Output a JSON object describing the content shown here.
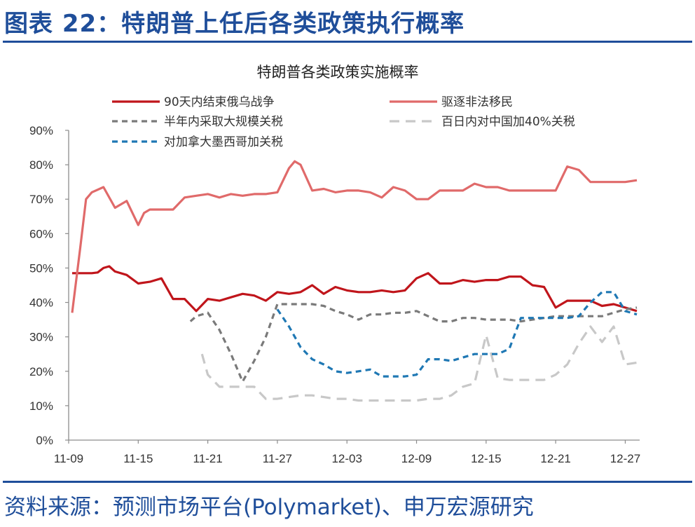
{
  "figure_title": "图表 22：特朗普上任后各类政策执行概率",
  "source": "资料来源：预测市场平台(Polymarket)、申万宏源研究",
  "chart_data": {
    "type": "line",
    "title": "特朗普各类政策实施概率",
    "xlabel": "",
    "ylabel": "",
    "ylim": [
      0,
      90
    ],
    "yticks": [
      "0%",
      "10%",
      "20%",
      "30%",
      "40%",
      "50%",
      "60%",
      "70%",
      "80%",
      "90%"
    ],
    "yticks_values": [
      0,
      10,
      20,
      30,
      40,
      50,
      60,
      70,
      80,
      90
    ],
    "xticks": [
      "11-09",
      "11-15",
      "11-21",
      "11-27",
      "12-03",
      "12-09",
      "12-15",
      "12-21",
      "12-27"
    ],
    "xticks_values": [
      0,
      6,
      12,
      18,
      24,
      30,
      36,
      42,
      48
    ],
    "xlim": [
      0,
      49
    ],
    "grid": false,
    "legend_position": "top",
    "series": [
      {
        "name": "90天内结束俄乌战争",
        "color": "#c0151b",
        "dash": "solid",
        "width": 3.2,
        "points": [
          [
            0.3,
            48.5
          ],
          [
            1,
            48.5
          ],
          [
            2,
            48.5
          ],
          [
            2.5,
            48.7
          ],
          [
            3,
            50
          ],
          [
            3.5,
            50.5
          ],
          [
            4,
            49
          ],
          [
            5,
            48
          ],
          [
            6,
            45.5
          ],
          [
            7,
            46
          ],
          [
            8,
            47
          ],
          [
            9,
            41
          ],
          [
            10,
            41
          ],
          [
            11,
            37.5
          ],
          [
            12,
            41
          ],
          [
            13,
            40.5
          ],
          [
            14,
            41.5
          ],
          [
            15,
            42.5
          ],
          [
            16,
            42
          ],
          [
            17,
            40.5
          ],
          [
            18,
            43
          ],
          [
            19,
            42.5
          ],
          [
            20,
            43
          ],
          [
            21,
            45
          ],
          [
            22,
            42.5
          ],
          [
            23,
            44.5
          ],
          [
            24,
            43.5
          ],
          [
            25,
            43
          ],
          [
            26,
            43
          ],
          [
            27,
            43.5
          ],
          [
            28,
            43
          ],
          [
            29,
            43.5
          ],
          [
            30,
            47
          ],
          [
            31,
            48.5
          ],
          [
            32,
            45.5
          ],
          [
            33,
            45.5
          ],
          [
            34,
            46.5
          ],
          [
            35,
            46
          ],
          [
            36,
            46.5
          ],
          [
            37,
            46.5
          ],
          [
            38,
            47.5
          ],
          [
            39,
            47.5
          ],
          [
            40,
            45
          ],
          [
            41,
            44.5
          ],
          [
            42,
            38.5
          ],
          [
            43,
            40.5
          ],
          [
            44,
            40.5
          ],
          [
            45,
            40.5
          ],
          [
            46,
            39
          ],
          [
            47,
            39.5
          ],
          [
            48,
            38.5
          ],
          [
            49,
            37.5
          ]
        ]
      },
      {
        "name": "驱逐非法移民",
        "color": "#e06a6a",
        "dash": "solid",
        "width": 3.2,
        "points": [
          [
            0.3,
            37
          ],
          [
            1,
            56
          ],
          [
            1.5,
            70
          ],
          [
            2,
            72
          ],
          [
            3,
            73.5
          ],
          [
            4,
            67.5
          ],
          [
            5,
            69.5
          ],
          [
            6,
            62.5
          ],
          [
            6.5,
            66
          ],
          [
            7,
            67
          ],
          [
            8,
            67
          ],
          [
            9,
            67
          ],
          [
            10,
            70.5
          ],
          [
            11,
            71
          ],
          [
            12,
            71.5
          ],
          [
            13,
            70.5
          ],
          [
            14,
            71.5
          ],
          [
            15,
            71
          ],
          [
            16,
            71.5
          ],
          [
            17,
            71.5
          ],
          [
            18,
            72
          ],
          [
            19,
            79
          ],
          [
            19.5,
            81
          ],
          [
            20,
            80
          ],
          [
            21,
            72.5
          ],
          [
            22,
            73
          ],
          [
            23,
            72
          ],
          [
            24,
            72.5
          ],
          [
            25,
            72.5
          ],
          [
            26,
            72
          ],
          [
            27,
            70.5
          ],
          [
            28,
            73.5
          ],
          [
            29,
            72.5
          ],
          [
            30,
            70
          ],
          [
            31,
            70
          ],
          [
            32,
            72.5
          ],
          [
            33,
            72.5
          ],
          [
            34,
            72.5
          ],
          [
            35,
            74.5
          ],
          [
            36,
            73.5
          ],
          [
            37,
            73.5
          ],
          [
            38,
            72.5
          ],
          [
            39,
            72.5
          ],
          [
            40,
            72.5
          ],
          [
            41,
            72.5
          ],
          [
            42,
            72.5
          ],
          [
            43,
            79.5
          ],
          [
            44,
            78.5
          ],
          [
            45,
            75
          ],
          [
            46,
            75
          ],
          [
            47,
            75
          ],
          [
            48,
            75
          ],
          [
            49,
            75.5
          ]
        ]
      },
      {
        "name": "半年内采取大规模关税",
        "color": "#7a7a7a",
        "dash": "8,6",
        "width": 3.2,
        "points": [
          [
            10.5,
            34.5
          ],
          [
            11,
            36
          ],
          [
            12,
            37
          ],
          [
            13,
            32
          ],
          [
            14,
            25
          ],
          [
            15,
            17
          ],
          [
            16,
            23
          ],
          [
            17,
            30
          ],
          [
            18,
            39.5
          ],
          [
            19,
            39.5
          ],
          [
            20,
            39.5
          ],
          [
            21,
            39.5
          ],
          [
            22,
            39
          ],
          [
            23,
            37.5
          ],
          [
            24,
            36.5
          ],
          [
            25,
            35
          ],
          [
            26,
            36.5
          ],
          [
            27,
            36.5
          ],
          [
            28,
            37
          ],
          [
            29,
            37
          ],
          [
            30,
            37.5
          ],
          [
            31,
            36
          ],
          [
            32,
            34.5
          ],
          [
            33,
            34.5
          ],
          [
            34,
            35.5
          ],
          [
            35,
            35.5
          ],
          [
            36,
            35
          ],
          [
            37,
            35
          ],
          [
            38,
            35
          ],
          [
            39,
            34.5
          ],
          [
            40,
            35
          ],
          [
            41,
            35.5
          ],
          [
            42,
            36
          ],
          [
            43,
            36
          ],
          [
            44,
            36
          ],
          [
            45,
            36
          ],
          [
            46,
            36
          ],
          [
            47,
            37
          ],
          [
            48,
            38
          ],
          [
            49,
            38.5
          ]
        ]
      },
      {
        "name": "百日内对中国加40%关税",
        "color": "#c8c8c8",
        "dash": "14,9",
        "width": 3.2,
        "points": [
          [
            11.5,
            25
          ],
          [
            12,
            19
          ],
          [
            13,
            15.5
          ],
          [
            14,
            15.5
          ],
          [
            15,
            15.5
          ],
          [
            16,
            15.5
          ],
          [
            17,
            12
          ],
          [
            18,
            12
          ],
          [
            19,
            12.5
          ],
          [
            20,
            13
          ],
          [
            21,
            13
          ],
          [
            22,
            12.5
          ],
          [
            23,
            12
          ],
          [
            24,
            12
          ],
          [
            25,
            11.5
          ],
          [
            26,
            11.5
          ],
          [
            27,
            11.5
          ],
          [
            28,
            11.5
          ],
          [
            29,
            11.5
          ],
          [
            30,
            11.5
          ],
          [
            31,
            12
          ],
          [
            32,
            12
          ],
          [
            33,
            13
          ],
          [
            34,
            15.5
          ],
          [
            35,
            16.5
          ],
          [
            36,
            30.5
          ],
          [
            37,
            18
          ],
          [
            38,
            17.5
          ],
          [
            39,
            17.5
          ],
          [
            40,
            17.5
          ],
          [
            41,
            17.5
          ],
          [
            42,
            19
          ],
          [
            43,
            22
          ],
          [
            44,
            28
          ],
          [
            45,
            33
          ],
          [
            46,
            28.5
          ],
          [
            47,
            33
          ],
          [
            48,
            22
          ],
          [
            49,
            22.5
          ]
        ]
      },
      {
        "name": "对加拿大墨西哥加关税",
        "color": "#1f78b4",
        "dash": "8,6",
        "width": 3.2,
        "points": [
          [
            18,
            38
          ],
          [
            19,
            33
          ],
          [
            20,
            27
          ],
          [
            21,
            23.5
          ],
          [
            22,
            22
          ],
          [
            23,
            20
          ],
          [
            24,
            19.5
          ],
          [
            25,
            20
          ],
          [
            26,
            20.5
          ],
          [
            27,
            18.5
          ],
          [
            28,
            18.5
          ],
          [
            29,
            18.5
          ],
          [
            30,
            19
          ],
          [
            31,
            23.5
          ],
          [
            32,
            23.5
          ],
          [
            33,
            23
          ],
          [
            34,
            24
          ],
          [
            35,
            25
          ],
          [
            36,
            25
          ],
          [
            37,
            25
          ],
          [
            38,
            26.5
          ],
          [
            39,
            35.5
          ],
          [
            40,
            35.5
          ],
          [
            41,
            35.5
          ],
          [
            42,
            35.5
          ],
          [
            43,
            35.5
          ],
          [
            44,
            36
          ],
          [
            45,
            40
          ],
          [
            46,
            43
          ],
          [
            47,
            43
          ],
          [
            48,
            37.5
          ],
          [
            49,
            36.5
          ]
        ]
      }
    ]
  }
}
